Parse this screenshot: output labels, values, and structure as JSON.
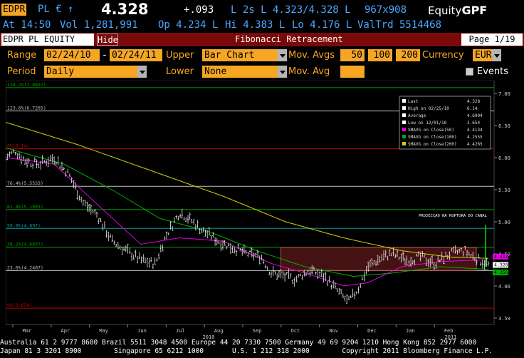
{
  "quote": {
    "ticker": "EDPR",
    "exchange_ccy": "PL € ↑",
    "last": "4.328",
    "change": "+.093",
    "bidask": "L 2s L 4.323/4.328 L",
    "size": "967x908",
    "brand_prefix": "Equity",
    "brand_suffix": "GPF",
    "at": "At 14:50",
    "vol": "Vol 1,281,991",
    "op": "Op 4.234 L",
    "hi": "Hi 4.383 L",
    "lo": "Lo 4.176 L",
    "valtrd": "ValTrd  5514468"
  },
  "titlebar": {
    "security": "EDPR PL EQUITY",
    "hide_label": "Hide",
    "title": "Fibonacci Retracement",
    "page": "Page 1/19"
  },
  "controls": {
    "range_label": "Range",
    "range_start": "02/24/10",
    "range_sep": "-",
    "range_end": "02/24/11",
    "upper_label": "Upper",
    "upper_value": "Bar Chart",
    "mov_avgs_label": "Mov. Avgs",
    "ma1": "50",
    "ma2": "100",
    "ma3": "200",
    "currency_label": "Currency",
    "currency_value": "EUR",
    "period_label": "Period",
    "period_value": "Daily",
    "lower_label": "Lower",
    "lower_value": "None",
    "mov_avg_label": "Mov. Avg",
    "mov_avg_value": "",
    "events_label": "Events"
  },
  "colors": {
    "amber": "#f5a623",
    "blue": "#4aa7ff",
    "ma50": "#e000e0",
    "ma100": "#00b000",
    "ma200": "#d6d000",
    "fib_red": "#c00000",
    "fib_green": "#00a000",
    "fib_cyan": "#00a0a0",
    "fib_white": "#bfbfbf"
  },
  "chart_data": {
    "type": "bar",
    "ylim": [
      3.4,
      7.2
    ],
    "y_ticks": [
      "7.00",
      "6.50",
      "6.00",
      "5.50",
      "5.00",
      "4.50",
      "4.00",
      "3.50"
    ],
    "x_labels": [
      "Mar",
      "Apr",
      "May",
      "Jun",
      "Jul",
      "Aug",
      "Sep",
      "Oct",
      "Nov",
      "Dec",
      "Jan",
      "Feb"
    ],
    "x_year_labels": [
      "2010",
      "2011"
    ],
    "fib_levels": [
      {
        "label": "138.2%(7.0897)",
        "value": 7.0897,
        "color": "fib_green"
      },
      {
        "label": "123.6%(6.7265)",
        "value": 6.7265,
        "color": "fib_white"
      },
      {
        "label": "0%(6.14)",
        "value": 6.14,
        "color": "fib_red"
      },
      {
        "label": "76.4%(5.5533)",
        "value": 5.5533,
        "color": "fib_white"
      },
      {
        "label": "61.8%(5.1903)",
        "value": 5.1903,
        "color": "fib_green"
      },
      {
        "label": "50.0%(4.897)",
        "value": 4.897,
        "color": "fib_cyan"
      },
      {
        "label": "38.2%(4.6037)",
        "value": 4.6037,
        "color": "fib_green"
      },
      {
        "label": "23.6%(4.2407)",
        "value": 4.2407,
        "color": "fib_white"
      },
      {
        "label": "0%(3.654)",
        "value": 3.654,
        "color": "fib_red"
      }
    ],
    "legend": [
      {
        "label": "Last",
        "value": "4.328",
        "swatch": "#ffffff"
      },
      {
        "label": "High on 02/25/10",
        "value": "6.14",
        "swatch": "#ffffff"
      },
      {
        "label": "Average",
        "value": "4.6904",
        "swatch": "#ffffff"
      },
      {
        "label": "Low on 12/01/10",
        "value": "3.654",
        "swatch": "#ffffff"
      },
      {
        "label": "SMAVG on Close(50)",
        "value": "4.4134",
        "swatch": "#e000e0"
      },
      {
        "label": "SMAVG on Close(100)",
        "value": "4.2555",
        "swatch": "#00b000"
      },
      {
        "label": "SMAVG on Close(200)",
        "value": "4.4265",
        "swatch": "#d6d000"
      }
    ],
    "price_path": [
      [
        0,
        6.0
      ],
      [
        0.02,
        6.1
      ],
      [
        0.04,
        5.95
      ],
      [
        0.07,
        5.9
      ],
      [
        0.1,
        6.0
      ],
      [
        0.13,
        5.75
      ],
      [
        0.16,
        5.3
      ],
      [
        0.19,
        5.1
      ],
      [
        0.22,
        4.7
      ],
      [
        0.25,
        4.55
      ],
      [
        0.28,
        4.4
      ],
      [
        0.31,
        4.35
      ],
      [
        0.33,
        4.75
      ],
      [
        0.36,
        5.15
      ],
      [
        0.38,
        5.05
      ],
      [
        0.41,
        4.85
      ],
      [
        0.44,
        4.7
      ],
      [
        0.47,
        4.6
      ],
      [
        0.5,
        4.5
      ],
      [
        0.53,
        4.45
      ],
      [
        0.55,
        4.2
      ],
      [
        0.58,
        4.15
      ],
      [
        0.6,
        4.1
      ],
      [
        0.63,
        4.25
      ],
      [
        0.66,
        4.15
      ],
      [
        0.69,
        3.9
      ],
      [
        0.71,
        3.75
      ],
      [
        0.73,
        3.95
      ],
      [
        0.75,
        4.3
      ],
      [
        0.78,
        4.45
      ],
      [
        0.8,
        4.5
      ],
      [
        0.83,
        4.4
      ],
      [
        0.86,
        4.45
      ],
      [
        0.89,
        4.35
      ],
      [
        0.92,
        4.5
      ],
      [
        0.95,
        4.55
      ],
      [
        0.97,
        4.45
      ],
      [
        1.0,
        4.33
      ]
    ],
    "ma50_path": [
      [
        0,
        6.0
      ],
      [
        0.1,
        5.9
      ],
      [
        0.2,
        5.2
      ],
      [
        0.28,
        4.65
      ],
      [
        0.36,
        4.75
      ],
      [
        0.45,
        4.7
      ],
      [
        0.55,
        4.35
      ],
      [
        0.63,
        4.18
      ],
      [
        0.7,
        4.0
      ],
      [
        0.75,
        4.05
      ],
      [
        0.82,
        4.3
      ],
      [
        0.9,
        4.38
      ],
      [
        1.0,
        4.41
      ]
    ],
    "ma100_path": [
      [
        0,
        6.15
      ],
      [
        0.12,
        5.9
      ],
      [
        0.22,
        5.5
      ],
      [
        0.32,
        5.05
      ],
      [
        0.42,
        4.85
      ],
      [
        0.52,
        4.55
      ],
      [
        0.62,
        4.3
      ],
      [
        0.72,
        4.15
      ],
      [
        0.8,
        4.2
      ],
      [
        0.9,
        4.3
      ],
      [
        1.0,
        4.26
      ]
    ],
    "ma200_path": [
      [
        0,
        6.55
      ],
      [
        0.15,
        6.2
      ],
      [
        0.3,
        5.8
      ],
      [
        0.45,
        5.4
      ],
      [
        0.58,
        5.0
      ],
      [
        0.7,
        4.75
      ],
      [
        0.82,
        4.55
      ],
      [
        0.92,
        4.45
      ],
      [
        1.0,
        4.43
      ]
    ],
    "annotation": "PROJECÇAO NA RUPTURA DO CANAL",
    "channel": {
      "top": 4.6037,
      "bottom": 4.2407,
      "start": 0.57,
      "end": 0.975
    },
    "last_badges": [
      "4.4134",
      "4.328",
      "4.2555"
    ]
  },
  "footer": {
    "line1": "Australia 61 2 9777 8600 Brazil 5511 3048 4500 Europe 44 20 7330 7500 Germany 49 69 9204 1210 Hong Kong 852 2977 6000",
    "line2": "Japan 81 3 3201 8900        Singapore 65 6212 1000       U.S. 1 212 318 2000        Copyright 2011 Bloomberg Finance L.P."
  }
}
